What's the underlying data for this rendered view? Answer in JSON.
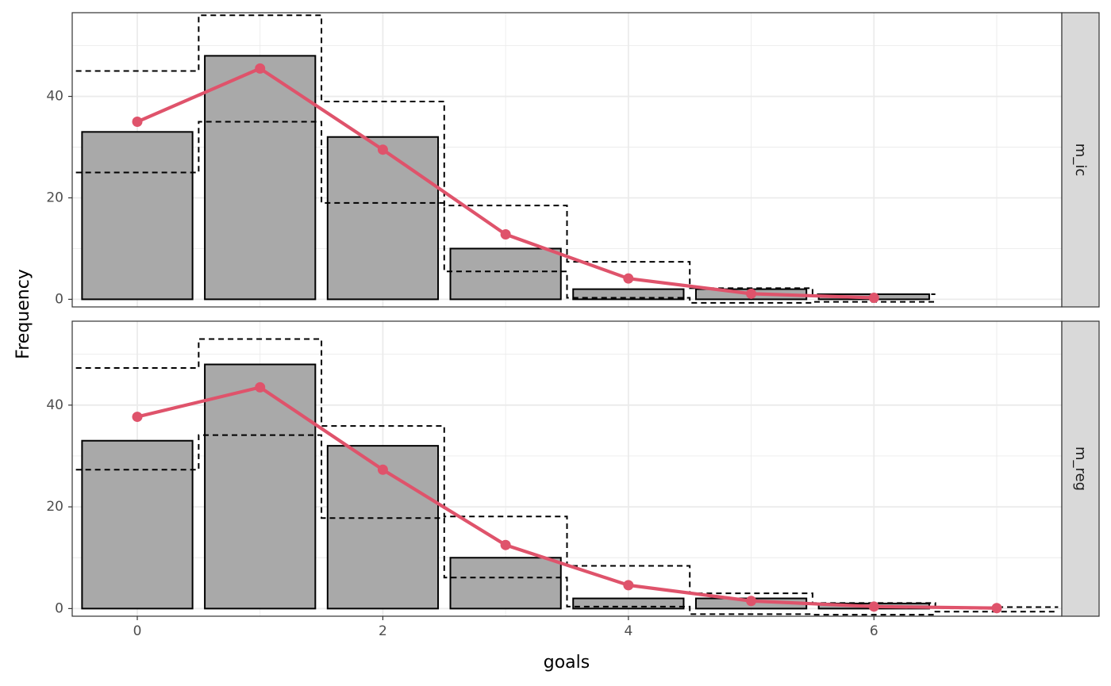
{
  "chart_data": {
    "type": "bar",
    "xlabel": "goals",
    "ylabel": "Frequency",
    "xlim": [
      -0.53,
      7.53
    ],
    "x_ticks": [
      0,
      2,
      4,
      6
    ],
    "y_ticks": [
      0,
      20,
      40
    ],
    "colors": {
      "bar_fill": "#a9a9a9",
      "bar_stroke": "#000000",
      "line": "#df536b",
      "strip_fill": "#d9d9d9",
      "grid": "#ebebeb"
    },
    "panels": [
      {
        "label": "m_ic",
        "ylim": [
          -1.5,
          56.5
        ],
        "observed": {
          "x": [
            0,
            1,
            2,
            3,
            4,
            5,
            6
          ],
          "values": [
            33,
            48,
            32,
            10,
            2,
            2,
            1
          ]
        },
        "expected": {
          "x": [
            0,
            1,
            2,
            3,
            4,
            5,
            6
          ],
          "values": [
            35.0,
            45.5,
            29.5,
            12.8,
            4.1,
            1.1,
            0.3
          ]
        },
        "interval": {
          "x": [
            0,
            1,
            2,
            3,
            4,
            5,
            6
          ],
          "lower": [
            25,
            35,
            19,
            5.5,
            0.3,
            -0.7,
            -0.5
          ],
          "upper": [
            45,
            56,
            39,
            18.5,
            7.4,
            2.2,
            1.0
          ]
        }
      },
      {
        "label": "m_reg",
        "ylim": [
          -1.5,
          56.5
        ],
        "observed": {
          "x": [
            0,
            1,
            2,
            3,
            4,
            5,
            6
          ],
          "values": [
            33,
            48,
            32,
            10,
            2,
            2,
            1
          ]
        },
        "expected": {
          "x": [
            0,
            1,
            2,
            3,
            4,
            5,
            6,
            7
          ],
          "values": [
            37.7,
            43.5,
            27.3,
            12.5,
            4.6,
            1.5,
            0.4,
            0.1
          ]
        },
        "interval": {
          "x": [
            0,
            1,
            2,
            3,
            4,
            5,
            6,
            7
          ],
          "lower": [
            27.3,
            34.1,
            17.8,
            6.1,
            0.4,
            -1.1,
            -1.2,
            -0.6
          ],
          "upper": [
            47.3,
            53.0,
            35.9,
            18.1,
            8.4,
            3.0,
            1.1,
            0.3
          ]
        }
      }
    ]
  }
}
